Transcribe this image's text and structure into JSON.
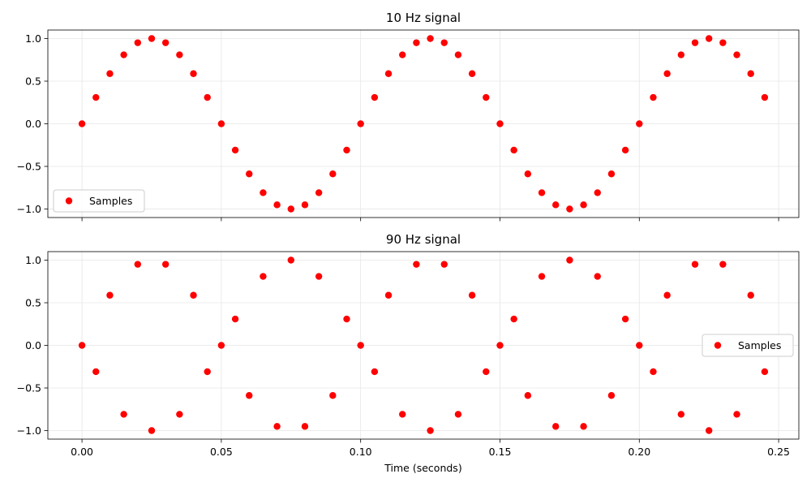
{
  "chart_data": [
    {
      "type": "scatter",
      "title": "10 Hz signal",
      "xlabel": "",
      "ylabel": "",
      "xlim": [
        -0.01225,
        0.25725
      ],
      "ylim": [
        -1.1,
        1.1
      ],
      "grid": true,
      "legend_position": "lower-left",
      "x_ticks": [
        0.0,
        0.05,
        0.1,
        0.15,
        0.2,
        0.25
      ],
      "x_tick_labels_visible": false,
      "y_ticks": [
        -1.0,
        -0.5,
        0.0,
        0.5,
        1.0
      ],
      "y_tick_labels": [
        "−1.0",
        "−0.5",
        "0.0",
        "0.5",
        "1.0"
      ],
      "series": [
        {
          "name": "Samples",
          "color": "#ff0000",
          "x": [
            0.0,
            0.005,
            0.01,
            0.015,
            0.02,
            0.025,
            0.03,
            0.035,
            0.04,
            0.045,
            0.05,
            0.055,
            0.06,
            0.065,
            0.07,
            0.075,
            0.08,
            0.085,
            0.09,
            0.095,
            0.1,
            0.105,
            0.11,
            0.115,
            0.12,
            0.125,
            0.13,
            0.135,
            0.14,
            0.145,
            0.15,
            0.155,
            0.16,
            0.165,
            0.17,
            0.175,
            0.18,
            0.185,
            0.19,
            0.195,
            0.2,
            0.205,
            0.21,
            0.215,
            0.22,
            0.225,
            0.23,
            0.235,
            0.24,
            0.245
          ],
          "y": [
            0.0,
            0.309,
            0.588,
            0.809,
            0.951,
            1.0,
            0.951,
            0.809,
            0.588,
            0.309,
            0.0,
            -0.309,
            -0.588,
            -0.809,
            -0.951,
            -1.0,
            -0.951,
            -0.809,
            -0.588,
            -0.309,
            0.0,
            0.309,
            0.588,
            0.809,
            0.951,
            1.0,
            0.951,
            0.809,
            0.588,
            0.309,
            0.0,
            -0.309,
            -0.588,
            -0.809,
            -0.951,
            -1.0,
            -0.951,
            -0.809,
            -0.588,
            -0.309,
            0.0,
            0.309,
            0.588,
            0.809,
            0.951,
            1.0,
            0.951,
            0.809,
            0.588,
            0.309
          ]
        }
      ]
    },
    {
      "type": "scatter",
      "title": "90 Hz signal",
      "xlabel": "Time (seconds)",
      "ylabel": "",
      "xlim": [
        -0.01225,
        0.25725
      ],
      "ylim": [
        -1.1,
        1.1
      ],
      "grid": true,
      "legend_position": "center-right",
      "x_ticks": [
        0.0,
        0.05,
        0.1,
        0.15,
        0.2,
        0.25
      ],
      "x_tick_labels": [
        "0.00",
        "0.05",
        "0.10",
        "0.15",
        "0.20",
        "0.25"
      ],
      "x_tick_labels_visible": true,
      "y_ticks": [
        -1.0,
        -0.5,
        0.0,
        0.5,
        1.0
      ],
      "y_tick_labels": [
        "−1.0",
        "−0.5",
        "0.0",
        "0.5",
        "1.0"
      ],
      "series": [
        {
          "name": "Samples",
          "color": "#ff0000",
          "x": [
            0.0,
            0.005,
            0.01,
            0.015,
            0.02,
            0.025,
            0.03,
            0.035,
            0.04,
            0.045,
            0.05,
            0.055,
            0.06,
            0.065,
            0.07,
            0.075,
            0.08,
            0.085,
            0.09,
            0.095,
            0.1,
            0.105,
            0.11,
            0.115,
            0.12,
            0.125,
            0.13,
            0.135,
            0.14,
            0.145,
            0.15,
            0.155,
            0.16,
            0.165,
            0.17,
            0.175,
            0.18,
            0.185,
            0.19,
            0.195,
            0.2,
            0.205,
            0.21,
            0.215,
            0.22,
            0.225,
            0.23,
            0.235,
            0.24,
            0.245
          ],
          "y": [
            0.0,
            -0.309,
            0.588,
            -0.809,
            0.951,
            -1.0,
            0.951,
            -0.809,
            0.588,
            -0.309,
            0.0,
            0.309,
            -0.588,
            0.809,
            -0.951,
            1.0,
            -0.951,
            0.809,
            -0.588,
            0.309,
            0.0,
            -0.309,
            0.588,
            -0.809,
            0.951,
            -1.0,
            0.951,
            -0.809,
            0.588,
            -0.309,
            0.0,
            0.309,
            -0.588,
            0.809,
            -0.951,
            1.0,
            -0.951,
            0.809,
            -0.588,
            0.309,
            0.0,
            -0.309,
            0.588,
            -0.809,
            0.951,
            -1.0,
            0.951,
            -0.809,
            0.588,
            -0.309
          ]
        }
      ]
    }
  ]
}
